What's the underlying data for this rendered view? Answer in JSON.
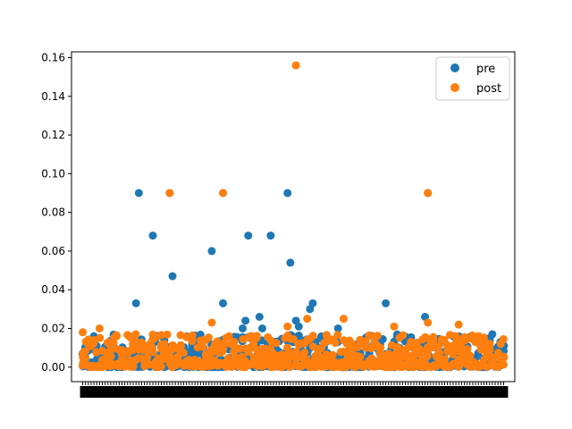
{
  "chart_data": {
    "type": "scatter",
    "title": "",
    "xlabel": "",
    "ylabel": "",
    "ylim": [
      -0.0075,
      0.163
    ],
    "xlim": [
      -4,
      154
    ],
    "yticks": [
      "0.00",
      "0.02",
      "0.04",
      "0.06",
      "0.08",
      "0.10",
      "0.12",
      "0.14",
      "0.16"
    ],
    "grid": false,
    "legend": {
      "placement": "top-right",
      "entries": [
        "pre",
        "post"
      ]
    },
    "colors": {
      "pre": "#1f77b4",
      "post": "#ff7f0e"
    },
    "series": [
      {
        "name": "pre",
        "outliers": [
          {
            "x": 20,
            "y": 0.09
          },
          {
            "x": 25,
            "y": 0.068
          },
          {
            "x": 31,
            "y": 0.09
          },
          {
            "x": 32,
            "y": 0.047
          },
          {
            "x": 19,
            "y": 0.033
          },
          {
            "x": 46,
            "y": 0.06
          },
          {
            "x": 50,
            "y": 0.09
          },
          {
            "x": 50,
            "y": 0.033
          },
          {
            "x": 59,
            "y": 0.068
          },
          {
            "x": 57,
            "y": 0.02
          },
          {
            "x": 58,
            "y": 0.024
          },
          {
            "x": 63,
            "y": 0.026
          },
          {
            "x": 64,
            "y": 0.02
          },
          {
            "x": 67,
            "y": 0.068
          },
          {
            "x": 73,
            "y": 0.09
          },
          {
            "x": 74,
            "y": 0.054
          },
          {
            "x": 76,
            "y": 0.024
          },
          {
            "x": 77,
            "y": 0.021
          },
          {
            "x": 81,
            "y": 0.03
          },
          {
            "x": 82,
            "y": 0.033
          },
          {
            "x": 108,
            "y": 0.033
          },
          {
            "x": 123,
            "y": 0.09
          },
          {
            "x": 122,
            "y": 0.026
          },
          {
            "x": 91,
            "y": 0.02
          },
          {
            "x": 132,
            "y": 0.016
          },
          {
            "x": 146,
            "y": 0.017
          }
        ]
      },
      {
        "name": "post",
        "outliers": [
          {
            "x": 31,
            "y": 0.09
          },
          {
            "x": 50,
            "y": 0.09
          },
          {
            "x": 76,
            "y": 0.156
          },
          {
            "x": 123,
            "y": 0.09
          },
          {
            "x": 46,
            "y": 0.023
          },
          {
            "x": 80,
            "y": 0.025
          },
          {
            "x": 93,
            "y": 0.025
          },
          {
            "x": 111,
            "y": 0.021
          },
          {
            "x": 123,
            "y": 0.023
          },
          {
            "x": 134,
            "y": 0.022
          },
          {
            "x": 73,
            "y": 0.021
          },
          {
            "x": 6,
            "y": 0.02
          },
          {
            "x": 0,
            "y": 0.018
          }
        ]
      }
    ]
  }
}
